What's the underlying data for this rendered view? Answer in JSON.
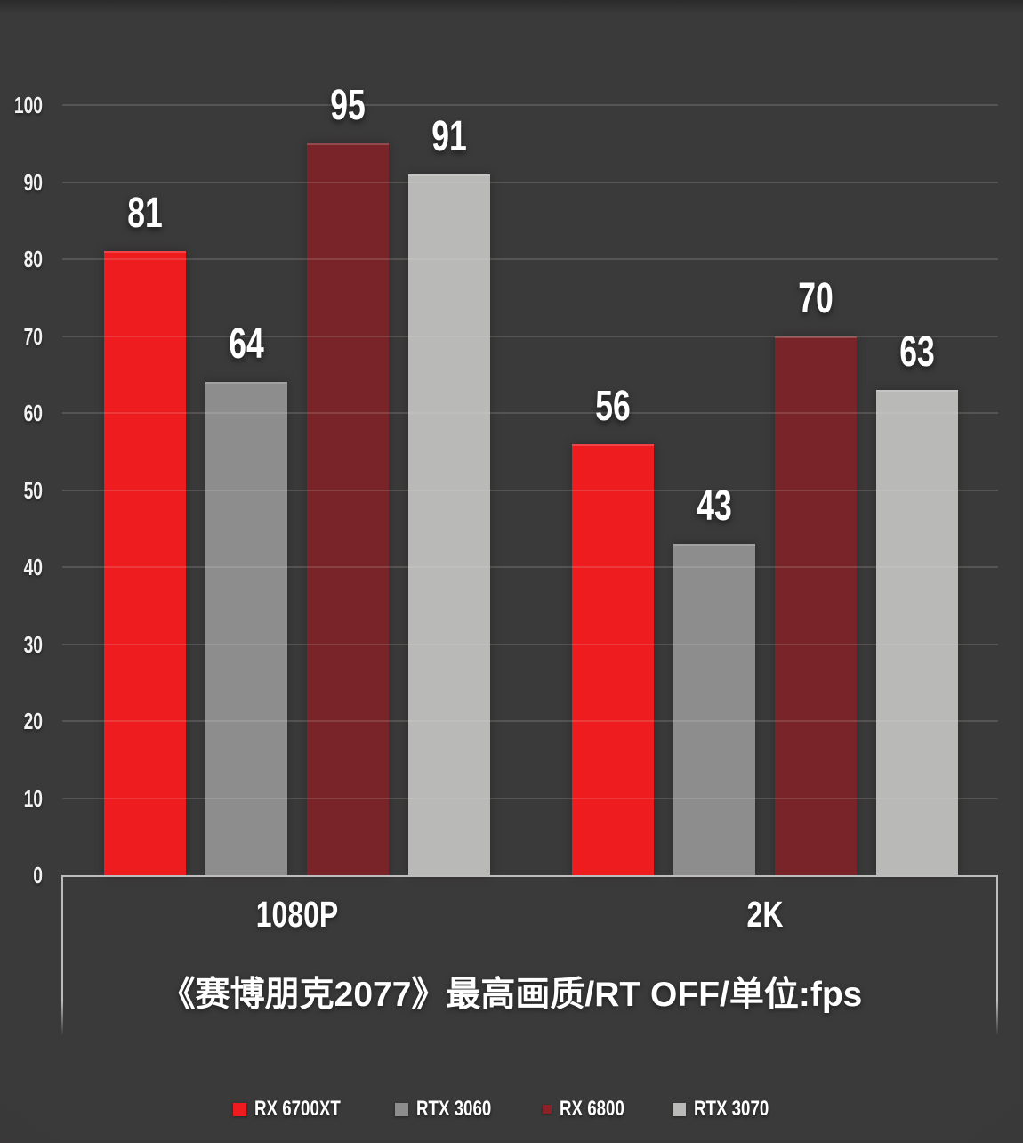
{
  "chart_data": {
    "type": "bar",
    "title": "《赛博朋克2077》最高画质/RT OFF/单位:fps",
    "unit": "fps",
    "categories": [
      "1080P",
      "2K"
    ],
    "series": [
      {
        "name": "RX 6700XT",
        "color": "#ee1c1e",
        "legend_color": "#ee1c1e",
        "values": [
          81,
          56
        ]
      },
      {
        "name": "RTX 3060",
        "color": "#8d8d8d",
        "legend_color": "#8d8d8d",
        "values": [
          64,
          43
        ]
      },
      {
        "name": "RX 6800",
        "color": "rgba(133,33,38,0.85)",
        "legend_color": "#8b2227",
        "values": [
          95,
          70
        ]
      },
      {
        "name": "RTX 3070",
        "color": "#b9b9b8",
        "legend_color": "#b9b9b8",
        "values": [
          91,
          63
        ]
      }
    ],
    "xlabel": "",
    "ylabel": "",
    "ylim": [
      0,
      100
    ],
    "y_ticks": [
      0,
      10,
      20,
      30,
      40,
      50,
      60,
      70,
      80,
      90,
      100
    ],
    "grid": true,
    "legend_position": "bottom",
    "background_color": "#3b3a3a",
    "gridline_color": "#55534f"
  }
}
